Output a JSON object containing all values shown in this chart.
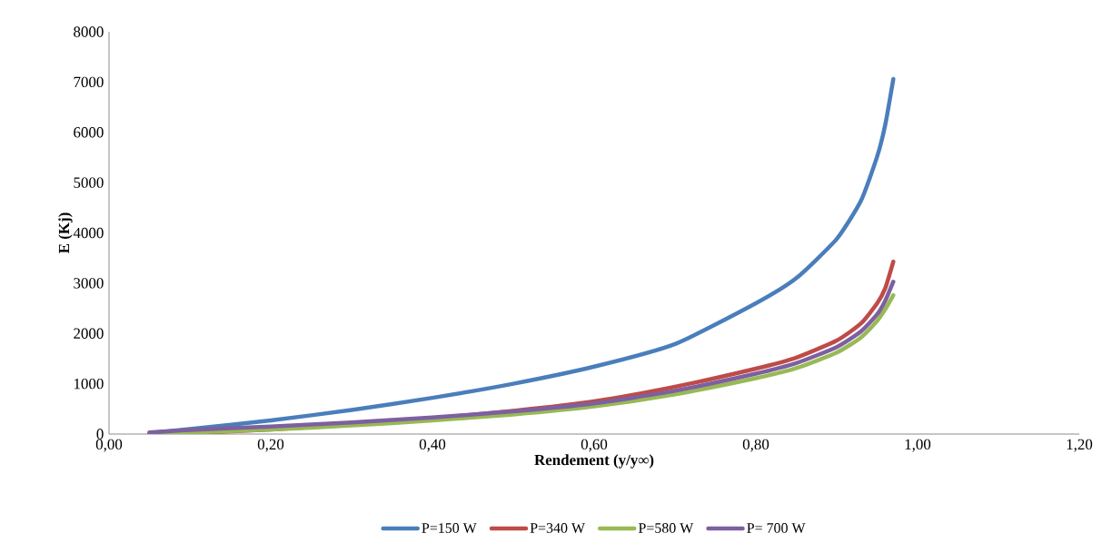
{
  "chart_data": {
    "type": "line",
    "xlabel": "Rendement (y/y∞)",
    "ylabel": "E (Kj)",
    "xlim": [
      0,
      1.2
    ],
    "ylim": [
      0,
      8000
    ],
    "xticks": [
      {
        "value": 0,
        "label": "0,00"
      },
      {
        "value": 0.2,
        "label": "0,20"
      },
      {
        "value": 0.4,
        "label": "0,40"
      },
      {
        "value": 0.6,
        "label": "0,60"
      },
      {
        "value": 0.8,
        "label": "0,80"
      },
      {
        "value": 1.0,
        "label": "1,00"
      },
      {
        "value": 1.2,
        "label": "1,20"
      }
    ],
    "yticks": [
      0,
      1000,
      2000,
      3000,
      4000,
      5000,
      6000,
      7000,
      8000
    ],
    "legend": "bottom",
    "x": [
      0.05,
      0.1,
      0.2,
      0.3,
      0.4,
      0.5,
      0.6,
      0.7,
      0.8,
      0.85,
      0.9,
      0.93,
      0.95,
      0.96,
      0.97
    ],
    "series": [
      {
        "name": "P=150 W",
        "color": "#4a7ebb",
        "values": [
          20,
          100,
          270,
          480,
          720,
          1000,
          1340,
          1790,
          2600,
          3100,
          3880,
          4640,
          5520,
          6150,
          7060
        ]
      },
      {
        "name": "P=340 W",
        "color": "#be4b48",
        "values": [
          0,
          20,
          90,
          190,
          310,
          460,
          650,
          940,
          1300,
          1520,
          1860,
          2200,
          2600,
          2900,
          3430
        ]
      },
      {
        "name": "P=580 W",
        "color": "#98b954",
        "values": [
          0,
          30,
          90,
          170,
          270,
          390,
          550,
          790,
          1110,
          1310,
          1620,
          1920,
          2250,
          2480,
          2760
        ]
      },
      {
        "name": "P= 700 W",
        "color": "#7d60a0",
        "values": [
          30,
          80,
          150,
          230,
          330,
          450,
          610,
          860,
          1200,
          1410,
          1730,
          2040,
          2380,
          2650,
          3030
        ]
      }
    ]
  }
}
